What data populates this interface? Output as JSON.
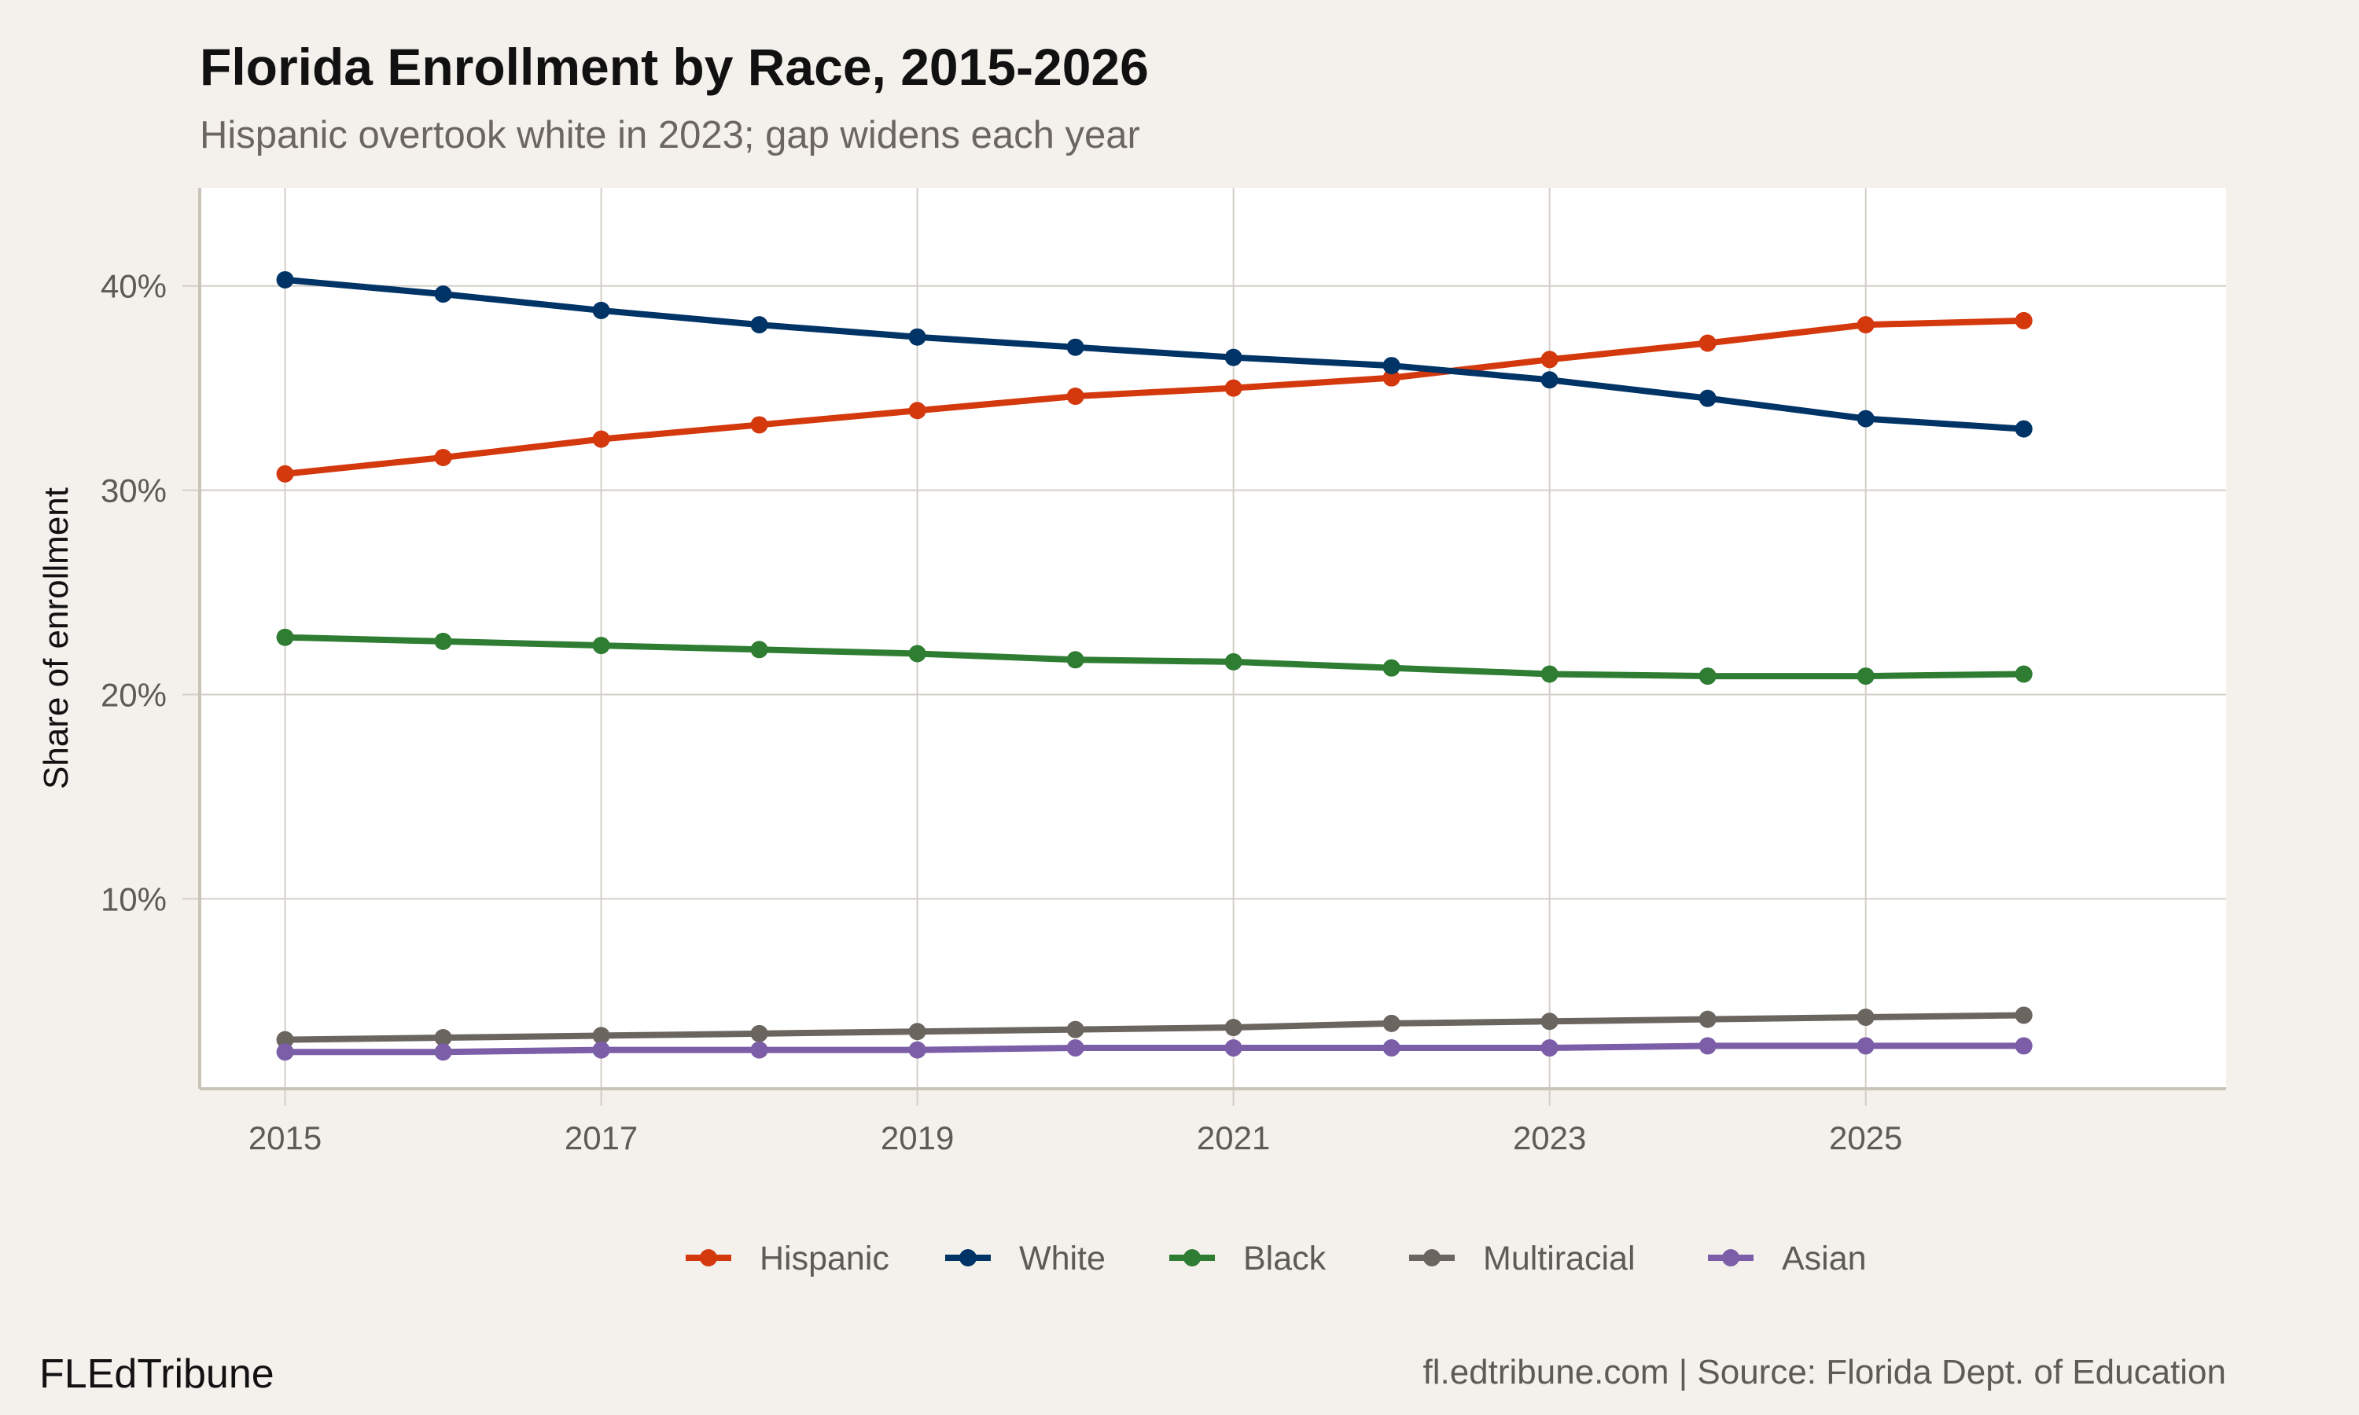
{
  "chart_data": {
    "type": "line",
    "title": "Florida Enrollment by Race, 2015-2026",
    "subtitle": "Hispanic overtook white in 2023; gap widens each year",
    "xlabel": "",
    "ylabel": "Share of enrollment",
    "x": [
      2015,
      2016,
      2017,
      2018,
      2019,
      2020,
      2021,
      2022,
      2023,
      2024,
      2025,
      2026
    ],
    "xlim": [
      2014.46,
      2027.28
    ],
    "ylim": [
      0.7,
      44.8
    ],
    "xticks": [
      2015,
      2017,
      2019,
      2021,
      2023,
      2025
    ],
    "xtick_labels": [
      "2015",
      "2017",
      "2019",
      "2021",
      "2023",
      "2025"
    ],
    "yticks": [
      10,
      20,
      30,
      40
    ],
    "ytick_labels": [
      "10%",
      "20%",
      "30%",
      "40%"
    ],
    "grid": true,
    "legend_position": "bottom",
    "series": [
      {
        "name": "Hispanic",
        "color": "#d4380d",
        "values": [
          30.8,
          31.6,
          32.5,
          33.2,
          33.9,
          34.6,
          35.0,
          35.5,
          36.4,
          37.2,
          38.1,
          38.3
        ]
      },
      {
        "name": "White",
        "color": "#003366",
        "values": [
          40.3,
          39.6,
          38.8,
          38.1,
          37.5,
          37.0,
          36.5,
          36.1,
          35.4,
          34.5,
          33.5,
          33.0
        ]
      },
      {
        "name": "Black",
        "color": "#2e7d32",
        "values": [
          22.8,
          22.6,
          22.4,
          22.2,
          22.0,
          21.7,
          21.6,
          21.3,
          21.0,
          20.9,
          20.9,
          21.0
        ]
      },
      {
        "name": "Multiracial",
        "color": "#6b6560",
        "values": [
          3.1,
          3.2,
          3.3,
          3.4,
          3.5,
          3.6,
          3.7,
          3.9,
          4.0,
          4.1,
          4.2,
          4.3
        ]
      },
      {
        "name": "Asian",
        "color": "#7b5ea7",
        "values": [
          2.5,
          2.5,
          2.6,
          2.6,
          2.6,
          2.7,
          2.7,
          2.7,
          2.7,
          2.8,
          2.8,
          2.8
        ]
      }
    ]
  },
  "footer": {
    "brand": "FLEdTribune",
    "source": "fl.edtribune.com | Source: Florida Dept. of Education"
  }
}
